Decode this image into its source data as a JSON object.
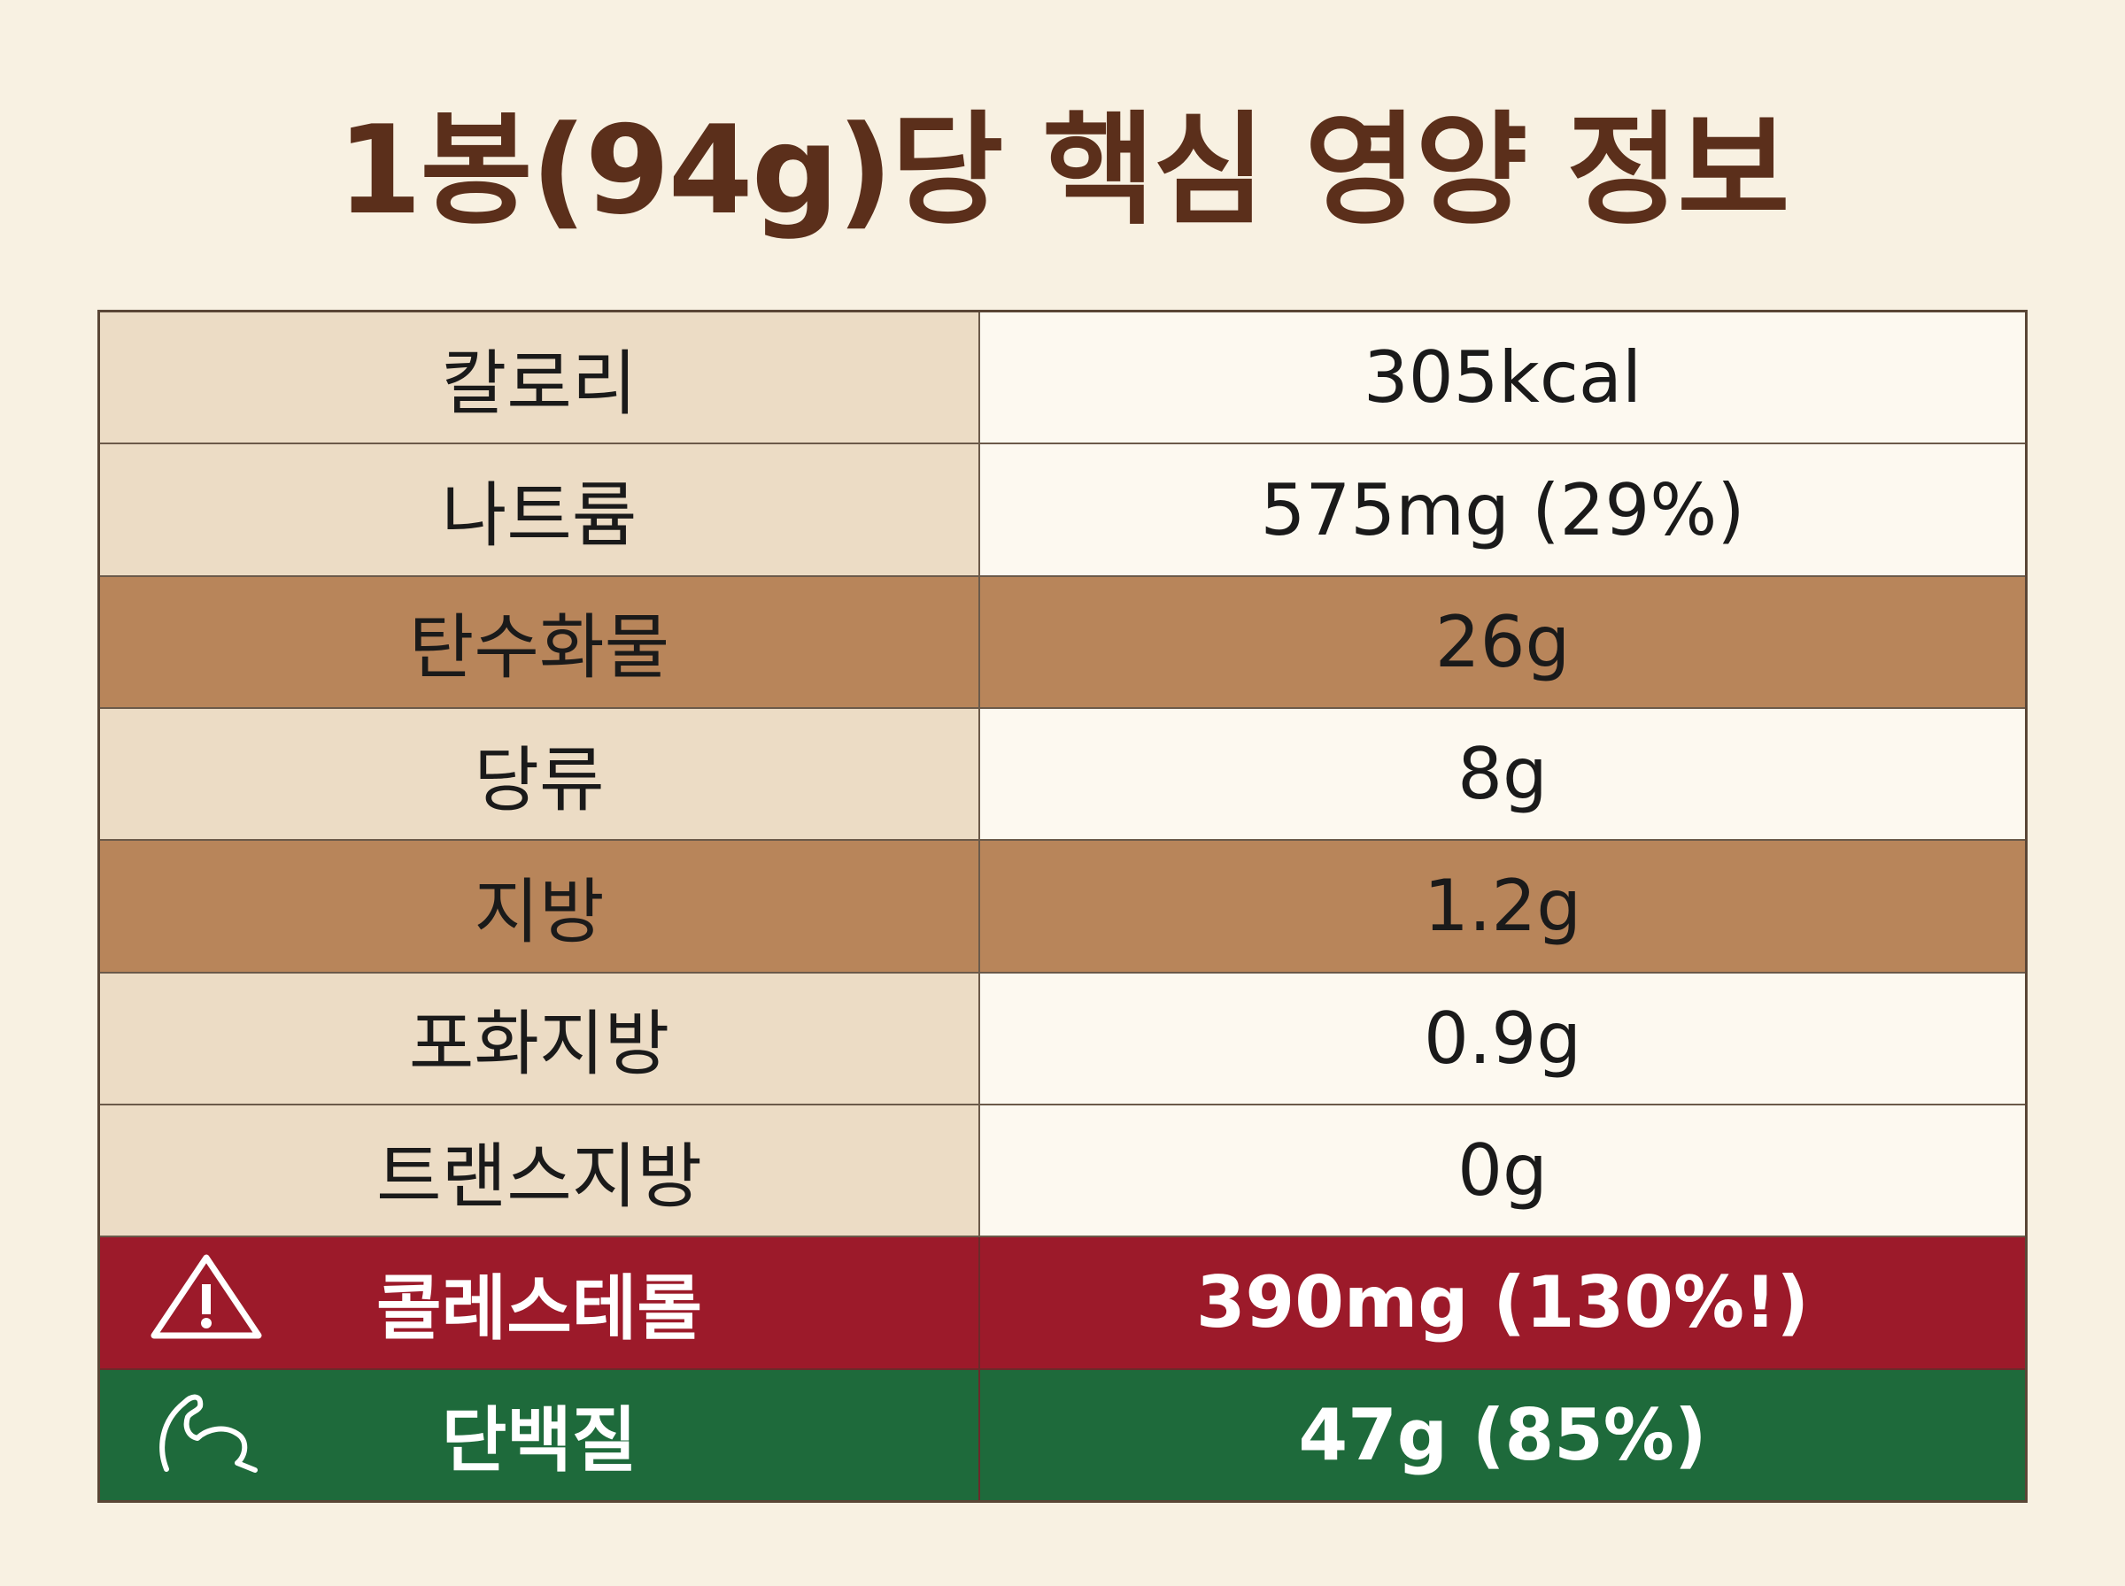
{
  "header": {
    "title": "1봉(94g)당 핵심 영양 정보"
  },
  "table": {
    "rows": [
      [
        "칼로리",
        "305kcal"
      ],
      [
        "나트륨",
        "575mg (29%)"
      ],
      [
        "탄수화물",
        "26g"
      ],
      [
        "당류",
        "8g"
      ],
      [
        "지방",
        "1.2g"
      ],
      [
        "포화지방",
        "0.9g"
      ],
      [
        "트랜스지방",
        "0g"
      ],
      [
        "콜레스테롤",
        "390mg (130%!)"
      ],
      [
        "단백질",
        "47g (85%)"
      ]
    ]
  }
}
